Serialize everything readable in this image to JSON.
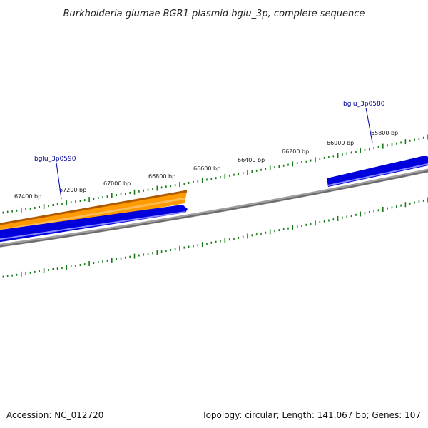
{
  "title": "Burkholderia glumae BGR1 plasmid bglu_3p, complete sequence",
  "footer": {
    "accession": "Accession: NC_012720",
    "summary": "Topology: circular; Length: 141,067 bp; Genes: 107"
  },
  "colors": {
    "backbone": "#808080",
    "forward_gene": "#ff9a00",
    "reverse_gene": "#0000dd",
    "tick": "#1a7a1a",
    "gene_label": "#000099"
  },
  "ruler_labels": [
    "67400 bp",
    "67200 bp",
    "67000 bp",
    "66800 bp",
    "66600 bp",
    "66400 bp",
    "66200 bp",
    "66000 bp",
    "65800 bp"
  ],
  "gene_labels": [
    "bglu_3p0590",
    "bglu_3p0580"
  ],
  "features": [
    {
      "strand": "forward",
      "color_key": "forward_gene"
    },
    {
      "strand": "reverse",
      "color_key": "reverse_gene"
    },
    {
      "strand": "reverse",
      "color_key": "reverse_gene"
    }
  ]
}
